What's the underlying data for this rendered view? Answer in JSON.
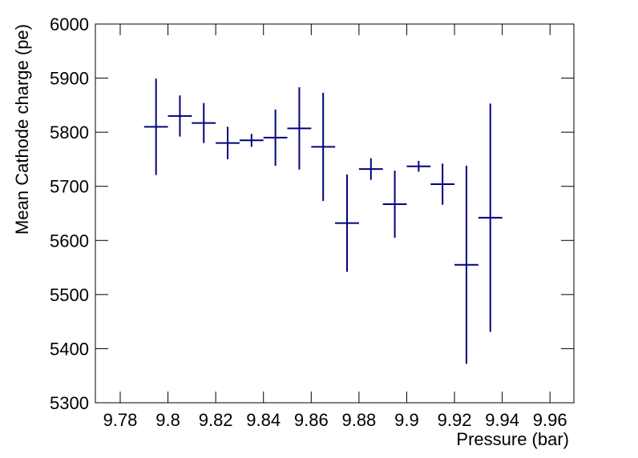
{
  "chart_data": {
    "type": "errorbar",
    "x_label": "Pressure (bar)",
    "y_label": "Mean Cathode charge (pe)",
    "x": [
      9.795,
      9.805,
      9.815,
      9.825,
      9.835,
      9.845,
      9.855,
      9.865,
      9.875,
      9.885,
      9.895,
      9.905,
      9.915,
      9.925,
      9.935
    ],
    "xerr": [
      0.005,
      0.005,
      0.005,
      0.005,
      0.005,
      0.005,
      0.005,
      0.005,
      0.005,
      0.005,
      0.005,
      0.005,
      0.005,
      0.005,
      0.005
    ],
    "values": [
      5810,
      5830,
      5817,
      5780,
      5785,
      5790,
      5807,
      5773,
      5632,
      5732,
      5667,
      5737,
      5704,
      5555,
      5642
    ],
    "yerr": [
      89,
      38,
      37,
      30,
      12,
      52,
      76,
      100,
      90,
      20,
      62,
      10,
      38,
      183,
      211
    ],
    "color": "#000080",
    "xlim": [
      9.7696,
      9.97
    ],
    "ylim": [
      5300,
      6000
    ],
    "xticks": [
      9.78,
      9.8,
      9.82,
      9.84,
      9.86,
      9.88,
      9.9,
      9.92,
      9.94,
      9.96
    ],
    "yticks": [
      5300,
      5400,
      5500,
      5600,
      5700,
      5800,
      5900,
      6000
    ]
  }
}
